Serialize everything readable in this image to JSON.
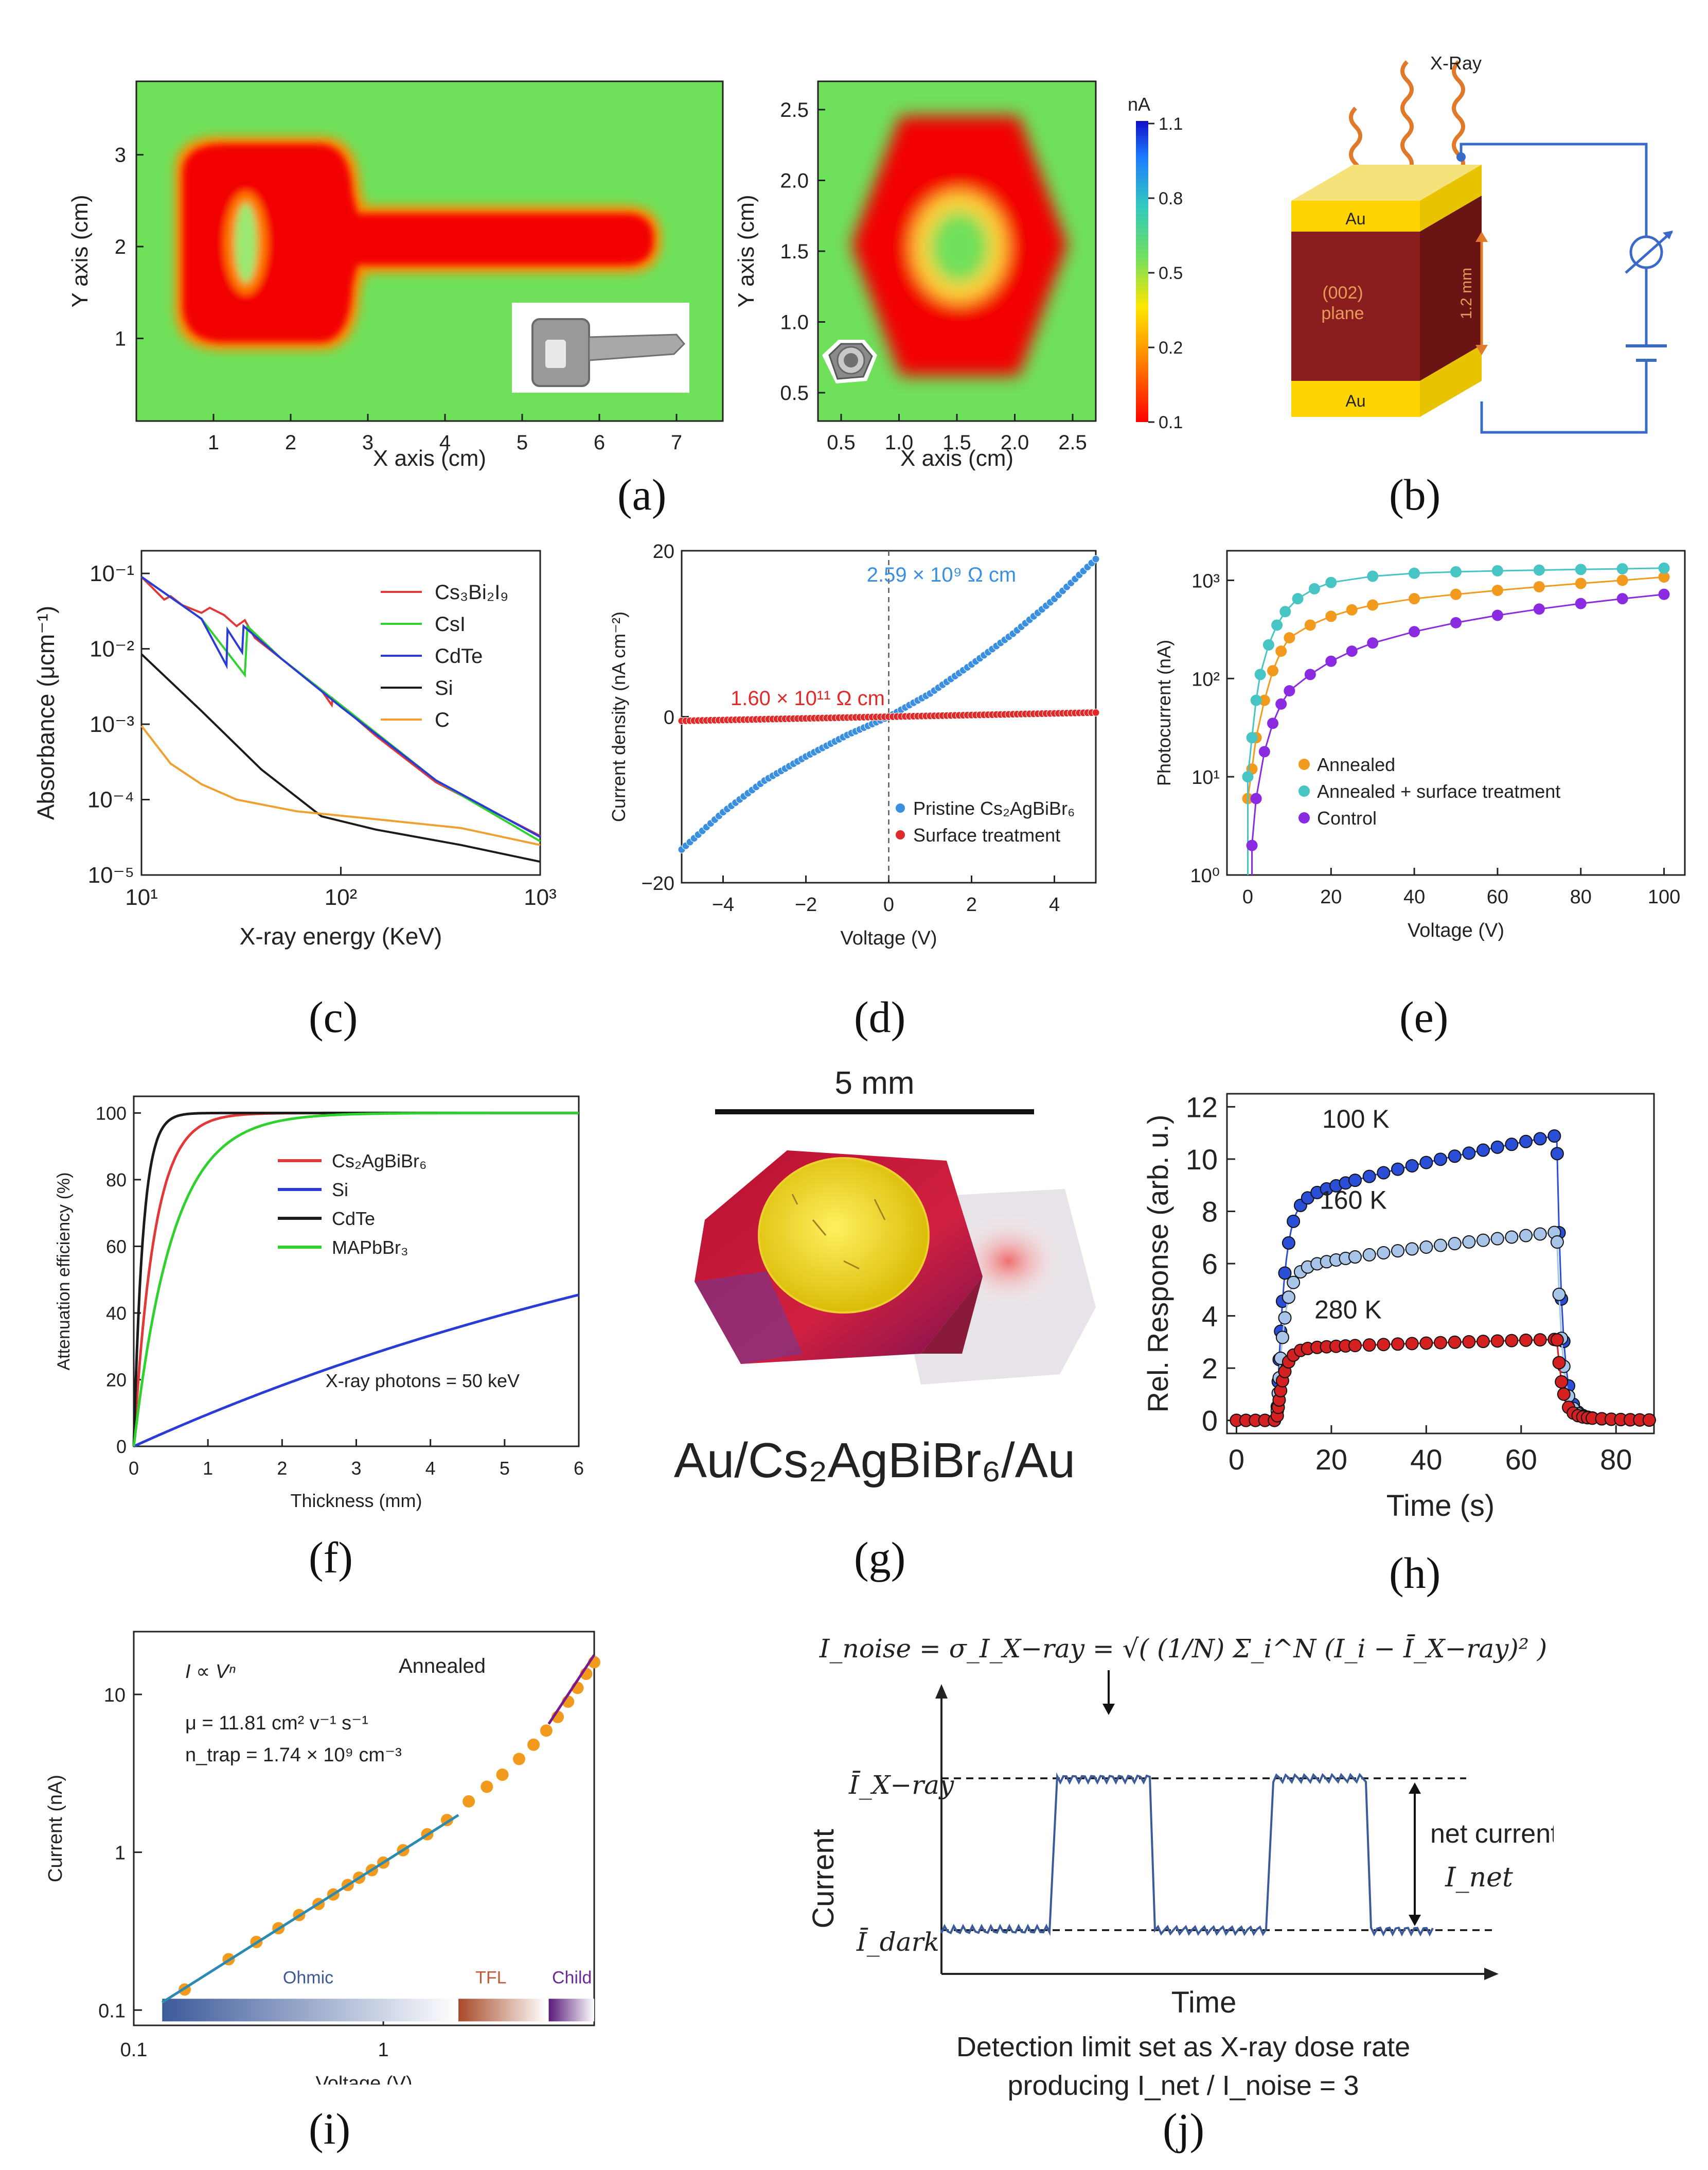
{
  "panel_labels": {
    "a": "(a)",
    "b": "(b)",
    "c": "(c)",
    "d": "(d)",
    "e": "(e)",
    "f": "(f)",
    "g": "(g)",
    "h": "(h)",
    "i": "(i)",
    "j": "(j)"
  },
  "colors": {
    "hot": "#f20000",
    "bg_green": "#6fe05a",
    "cd_red": "#e23838",
    "cd_green": "#2ed12e",
    "cd_blue": "#2a3bd6",
    "cd_black": "#1b1b1b",
    "cd_orange": "#f0a030",
    "d_blue": "#3a8fe0",
    "d_red": "#e02a2a",
    "e_orange": "#f29a1e",
    "e_cyan": "#47c4c4",
    "e_purple": "#8a2be2",
    "j_line": "#3a5a9a"
  },
  "chart_data": [
    {
      "id": "a-left",
      "type": "heatmap",
      "xlabel": "X axis (cm)",
      "ylabel": "Y axis (cm)",
      "xticks": [
        "1",
        "2",
        "3",
        "4",
        "5",
        "6",
        "7"
      ],
      "yticks": [
        "1",
        "2",
        "3"
      ],
      "xlim": [
        0,
        7.6
      ],
      "ylim": [
        0.1,
        3.8
      ],
      "object": "key",
      "inset": "key photo"
    },
    {
      "id": "a-right",
      "type": "heatmap",
      "xlabel": "X axis (cm)",
      "ylabel": "Y axis (cm)",
      "xticks": [
        "0.5",
        "1.0",
        "1.5",
        "2.0",
        "2.5"
      ],
      "yticks": [
        "0.5",
        "1.0",
        "1.5",
        "2.0",
        "2.5"
      ],
      "xlim": [
        0.3,
        2.7
      ],
      "ylim": [
        0.3,
        2.7
      ],
      "object": "hex nut",
      "inset": "nut photo",
      "colorbar": {
        "unit": "nA",
        "ticks": [
          "1.1",
          "0.8",
          "0.5",
          "0.2",
          "0.1"
        ]
      }
    },
    {
      "id": "c",
      "type": "line",
      "log_x": true,
      "log_y": true,
      "xlabel": "X-ray energy (KeV)",
      "ylabel": "Absorbance (μcm⁻¹)",
      "xlim": [
        10,
        1000
      ],
      "ylim": [
        1e-05,
        0.2
      ],
      "xticks": [
        "10¹",
        "10²",
        "10³"
      ],
      "yticks": [
        "10⁻⁵",
        "10⁻⁴",
        "10⁻³",
        "10⁻²",
        "10⁻¹"
      ],
      "series": [
        {
          "name": "Cs₃Bi₂I₉",
          "color": "#e23838",
          "points": [
            [
              10,
              0.09
            ],
            [
              13,
              0.045
            ],
            [
              14,
              0.05
            ],
            [
              16,
              0.038
            ],
            [
              20,
              0.03
            ],
            [
              22,
              0.035
            ],
            [
              26,
              0.028
            ],
            [
              30,
              0.02
            ],
            [
              33,
              0.024
            ],
            [
              37,
              0.014
            ],
            [
              50,
              0.0075
            ],
            [
              80,
              0.0028
            ],
            [
              90,
              0.0018
            ],
            [
              91,
              0.0022
            ],
            [
              150,
              0.0007
            ],
            [
              300,
              0.00017
            ],
            [
              1000,
              3.3e-05
            ]
          ]
        },
        {
          "name": "CsI",
          "color": "#2ed12e",
          "points": [
            [
              10,
              0.09
            ],
            [
              20,
              0.025
            ],
            [
              33,
              0.0045
            ],
            [
              34,
              0.02
            ],
            [
              50,
              0.0075
            ],
            [
              100,
              0.0018
            ],
            [
              300,
              0.00018
            ],
            [
              1000,
              2.8e-05
            ]
          ]
        },
        {
          "name": "CdTe",
          "color": "#2a3bd6",
          "points": [
            [
              10,
              0.09
            ],
            [
              20,
              0.025
            ],
            [
              26.7,
              0.006
            ],
            [
              27,
              0.018
            ],
            [
              32,
              0.009
            ],
            [
              32.5,
              0.02
            ],
            [
              50,
              0.0075
            ],
            [
              100,
              0.0017
            ],
            [
              300,
              0.00018
            ],
            [
              1000,
              3.2e-05
            ]
          ]
        },
        {
          "name": "Si",
          "color": "#1b1b1b",
          "points": [
            [
              10,
              0.0085
            ],
            [
              20,
              0.0015
            ],
            [
              40,
              0.00025
            ],
            [
              80,
              6e-05
            ],
            [
              150,
              4e-05
            ],
            [
              400,
              2.5e-05
            ],
            [
              1000,
              1.5e-05
            ]
          ]
        },
        {
          "name": "C",
          "color": "#f0a030",
          "points": [
            [
              10,
              0.00095
            ],
            [
              14,
              0.0003
            ],
            [
              20,
              0.00016
            ],
            [
              30,
              0.0001
            ],
            [
              60,
              7e-05
            ],
            [
              150,
              5.5e-05
            ],
            [
              400,
              4.2e-05
            ],
            [
              1000,
              2.5e-05
            ]
          ]
        }
      ]
    },
    {
      "id": "d",
      "type": "scatter",
      "xlabel": "Voltage (V)",
      "ylabel": "Current density (nA cm⁻²)",
      "xlim": [
        -5,
        5
      ],
      "ylim": [
        -20,
        20
      ],
      "xticks": [
        "−4",
        "−2",
        "0",
        "2",
        "4"
      ],
      "yticks": [
        "−20",
        "0",
        "20"
      ],
      "annotations": [
        "2.59 × 10⁹ Ω cm",
        "1.60 × 10¹¹ Ω cm"
      ],
      "series": [
        {
          "name": "Pristine Cs₂AgBiBr₆",
          "color": "#3a8fe0",
          "points": [
            [
              -5,
              -16
            ],
            [
              -4,
              -11.5
            ],
            [
              -3,
              -7.7
            ],
            [
              -2,
              -4.8
            ],
            [
              -1,
              -2.2
            ],
            [
              0,
              0
            ],
            [
              1,
              2.8
            ],
            [
              2,
              6.3
            ],
            [
              3,
              10
            ],
            [
              4,
              14.2
            ],
            [
              5,
              19
            ]
          ]
        },
        {
          "name": "Surface treatment",
          "color": "#e02a2a",
          "points": [
            [
              -5,
              -0.5
            ],
            [
              -2.5,
              -0.25
            ],
            [
              0,
              0
            ],
            [
              2.5,
              0.25
            ],
            [
              5,
              0.5
            ]
          ]
        }
      ]
    },
    {
      "id": "e",
      "type": "scatter",
      "log_y": true,
      "xlabel": "Voltage (V)",
      "ylabel": "Photocurrent (nA)",
      "xlim": [
        -5,
        105
      ],
      "ylim": [
        1,
        2000
      ],
      "xticks": [
        "0",
        "20",
        "40",
        "60",
        "80",
        "100"
      ],
      "yticks": [
        "10⁰",
        "10¹",
        "10²",
        "10³"
      ],
      "series": [
        {
          "name": "Annealed",
          "color": "#f29a1e",
          "points": [
            [
              0,
              6
            ],
            [
              1,
              12
            ],
            [
              2,
              25
            ],
            [
              4,
              60
            ],
            [
              6,
              120
            ],
            [
              8,
              190
            ],
            [
              10,
              260
            ],
            [
              15,
              350
            ],
            [
              20,
              430
            ],
            [
              25,
              500
            ],
            [
              30,
              560
            ],
            [
              40,
              650
            ],
            [
              50,
              720
            ],
            [
              60,
              790
            ],
            [
              70,
              860
            ],
            [
              80,
              930
            ],
            [
              90,
              1000
            ],
            [
              100,
              1080
            ]
          ]
        },
        {
          "name": "Annealed + surface treatment",
          "color": "#47c4c4",
          "points": [
            [
              0,
              10
            ],
            [
              1,
              25
            ],
            [
              2,
              60
            ],
            [
              3,
              110
            ],
            [
              5,
              220
            ],
            [
              7,
              350
            ],
            [
              9,
              480
            ],
            [
              12,
              650
            ],
            [
              16,
              820
            ],
            [
              20,
              950
            ],
            [
              30,
              1100
            ],
            [
              40,
              1180
            ],
            [
              50,
              1220
            ],
            [
              60,
              1250
            ],
            [
              70,
              1270
            ],
            [
              80,
              1290
            ],
            [
              90,
              1310
            ],
            [
              100,
              1330
            ]
          ]
        },
        {
          "name": "Control",
          "color": "#8a2be2",
          "points": [
            [
              1,
              2
            ],
            [
              2,
              6
            ],
            [
              4,
              18
            ],
            [
              6,
              35
            ],
            [
              8,
              55
            ],
            [
              10,
              75
            ],
            [
              15,
              110
            ],
            [
              20,
              150
            ],
            [
              25,
              190
            ],
            [
              30,
              230
            ],
            [
              40,
              300
            ],
            [
              50,
              370
            ],
            [
              60,
              440
            ],
            [
              70,
              510
            ],
            [
              80,
              580
            ],
            [
              90,
              650
            ],
            [
              100,
              720
            ]
          ]
        }
      ]
    },
    {
      "id": "f",
      "type": "line",
      "xlabel": "Thickness (mm)",
      "ylabel": "Attenuation efficiency (%)",
      "xlim": [
        0,
        6
      ],
      "ylim": [
        0,
        105
      ],
      "xticks": [
        "0",
        "1",
        "2",
        "3",
        "4",
        "5",
        "6"
      ],
      "yticks": [
        "0",
        "20",
        "40",
        "60",
        "80",
        "100"
      ],
      "annotation": "X-ray photons = 50 keV",
      "series": [
        {
          "name": "Cs₂AgBiBr₆",
          "color": "#e23838",
          "mu": 3.6
        },
        {
          "name": "Si",
          "color": "#2a3bd6",
          "mu": 0.101
        },
        {
          "name": "CdTe",
          "color": "#1b1b1b",
          "mu": 8.0
        },
        {
          "name": "MAPbBr₃",
          "color": "#2ed12e",
          "mu": 1.9
        }
      ]
    },
    {
      "id": "h",
      "type": "line",
      "xlabel": "Time (s)",
      "ylabel": "Rel. Response (arb. u.)",
      "xlim": [
        -2,
        88
      ],
      "ylim": [
        -0.5,
        12.5
      ],
      "xticks": [
        "0",
        "20",
        "40",
        "60",
        "80"
      ],
      "yticks": [
        "0",
        "2",
        "4",
        "6",
        "8",
        "10",
        "12"
      ],
      "series": [
        {
          "name": "100 K",
          "color": "#2a4fd6",
          "on": 8.5,
          "off": 67.5,
          "level_start": 8.0,
          "level_end": 10.9
        },
        {
          "name": "160 K",
          "color": "#a8c4e8",
          "on": 8.5,
          "off": 67.5,
          "level_start": 5.6,
          "level_end": 7.2
        },
        {
          "name": "280 K",
          "color": "#d42020",
          "on": 8.5,
          "off": 67.5,
          "level_start": 2.7,
          "level_end": 3.1
        }
      ]
    },
    {
      "id": "i",
      "type": "scatter",
      "log_x": true,
      "log_y": true,
      "xlabel": "Voltage (V)",
      "ylabel": "Current (nA)",
      "xlim": [
        0.1,
        7
      ],
      "ylim": [
        0.08,
        25
      ],
      "xticks": [
        "0.1",
        "1"
      ],
      "yticks": [
        "0.1",
        "1",
        "10"
      ],
      "texts": [
        "I ∝ Vⁿ",
        "Annealed",
        "μ = 11.81 cm² v⁻¹ s⁻¹",
        "n_trap = 1.74 × 10⁹ cm⁻³"
      ],
      "regions": [
        "Ohmic",
        "TFL",
        "Child"
      ],
      "series": [
        {
          "name": "data",
          "color": "#f29a1e",
          "points": [
            [
              0.16,
              0.135
            ],
            [
              0.24,
              0.21
            ],
            [
              0.31,
              0.27
            ],
            [
              0.38,
              0.33
            ],
            [
              0.46,
              0.4
            ],
            [
              0.55,
              0.47
            ],
            [
              0.63,
              0.54
            ],
            [
              0.72,
              0.62
            ],
            [
              0.8,
              0.69
            ],
            [
              0.9,
              0.77
            ],
            [
              1.0,
              0.86
            ],
            [
              1.2,
              1.03
            ],
            [
              1.5,
              1.3
            ],
            [
              1.8,
              1.6
            ],
            [
              2.2,
              2.1
            ],
            [
              2.6,
              2.6
            ],
            [
              3.0,
              3.1
            ],
            [
              3.5,
              3.9
            ],
            [
              4.0,
              4.8
            ],
            [
              4.5,
              5.9
            ],
            [
              5.0,
              7.2
            ],
            [
              5.5,
              9.0
            ],
            [
              6.0,
              11
            ],
            [
              6.5,
              13.5
            ],
            [
              7.0,
              16
            ]
          ]
        }
      ]
    },
    {
      "id": "j",
      "type": "line",
      "xlabel": "Time",
      "ylabel": "Current",
      "labels": {
        "xray": "Ī_X−ray",
        "dark": "Ī_dark",
        "net": "net current",
        "inet": "I_net"
      },
      "formula": "I_noise = σ_I_X−ray = √( (1/N) Σ_i^N (I_i − Ī_X−ray)² )",
      "caption": [
        "Detection limit set as X-ray dose rate",
        "producing I_net / I_noise = 3"
      ]
    }
  ],
  "text": {
    "b_xray": "X-Ray",
    "b_au_top": "Au",
    "b_au_bottom": "Au",
    "b_plane1": "(002)",
    "b_plane2": "plane",
    "b_thick": "1.2 mm",
    "g_scale": "5 mm",
    "g_label": "Au/Cs₂AgBiBr₆/Au",
    "h_100": "100 K",
    "h_160": "160 K",
    "h_280": "280 K"
  }
}
